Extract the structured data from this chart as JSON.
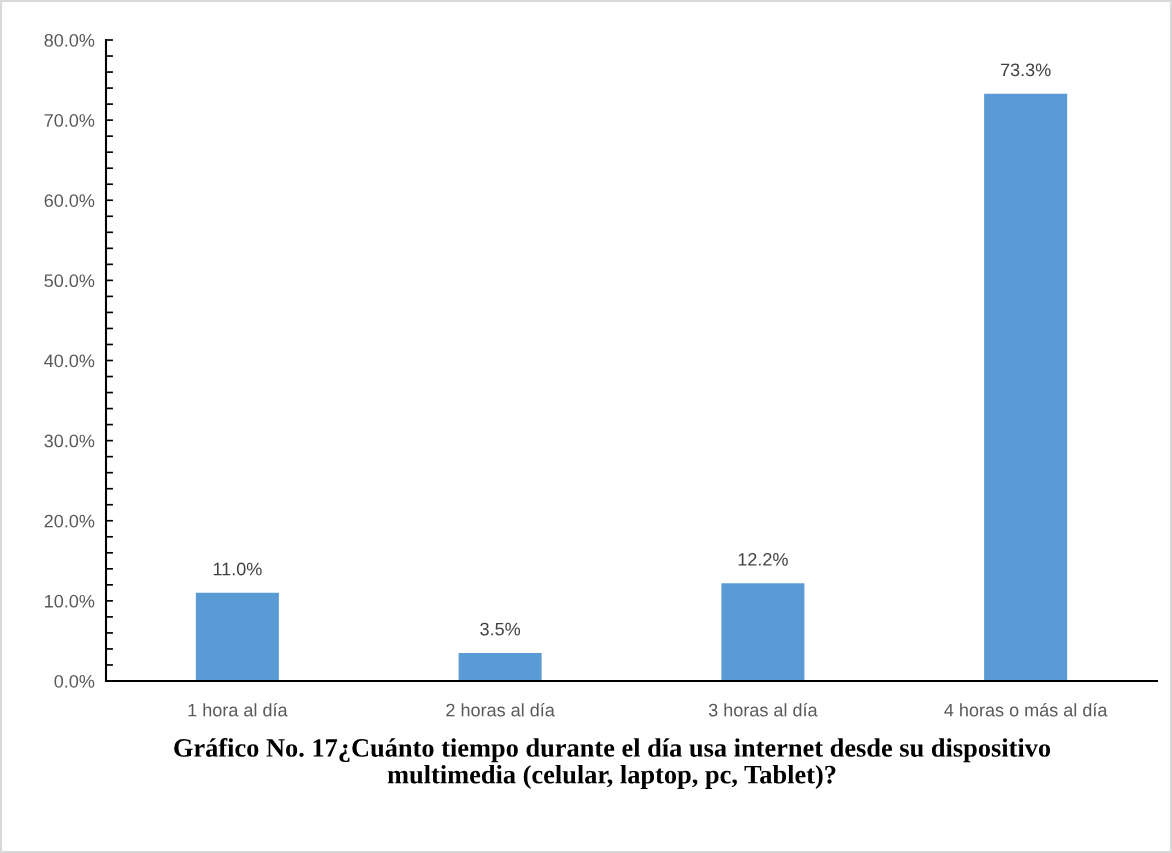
{
  "chart_data": {
    "type": "bar",
    "title": "Gráfico No. 17¿Cuánto tiempo durante el día usa internet desde su dispositivo multimedia (celular, laptop, pc, Tablet)?",
    "categories": [
      "1 hora al día",
      "2 horas al día",
      "3 horas al día",
      "4 horas o más al día"
    ],
    "values": [
      11.0,
      3.5,
      12.2,
      73.3
    ],
    "color": "#5b9bd5",
    "value_labels": [
      "11.0%",
      "3.5%",
      "12.2%",
      "73.3%"
    ],
    "ylim": [
      0,
      80
    ],
    "yticks": [
      {
        "value": 0,
        "label": "0.0%"
      },
      {
        "value": 10,
        "label": "10.0%"
      },
      {
        "value": 20,
        "label": "20.0%"
      },
      {
        "value": 30,
        "label": "30.0%"
      },
      {
        "value": 40,
        "label": "40.0%"
      },
      {
        "value": 50,
        "label": "50.0%"
      },
      {
        "value": 60,
        "label": "60.0%"
      },
      {
        "value": 70,
        "label": "70.0%"
      },
      {
        "value": 80,
        "label": "80.0%"
      }
    ]
  }
}
